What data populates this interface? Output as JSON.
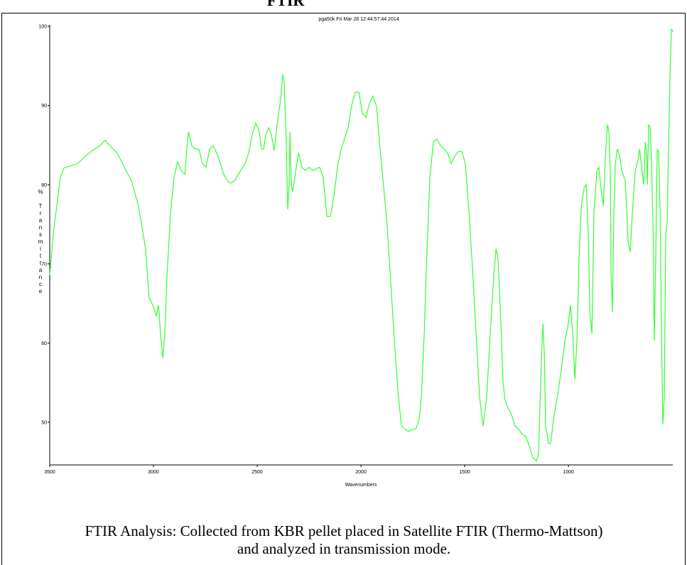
{
  "top_title": "FTIR",
  "caption_lines": [
    "FTIR Analysis: Collected from KBR pellet placed in Satellite FTIR (Thermo-Mattson)",
    "and analyzed in transmission mode."
  ],
  "chart_data": {
    "type": "line",
    "title": "pga50k  Fri Mar 28 12:44:57:44 2014",
    "x_label": "Wavenumbers",
    "y_label": "% Transmittance",
    "color": "#33ff33",
    "xlim": [
      3500,
      497
    ],
    "xticks": [
      3500,
      3000,
      2500,
      2000,
      1500,
      1000
    ],
    "ylim": [
      44.6,
      100.2
    ],
    "yticks": [
      50,
      60,
      70,
      80,
      90,
      100
    ],
    "x": [
      3500,
      3483,
      3466,
      3449,
      3432,
      3397,
      3363,
      3329,
      3295,
      3260,
      3233,
      3209,
      3175,
      3140,
      3106,
      3072,
      3038,
      3021,
      3003,
      2986,
      2976,
      2966,
      2955,
      2945,
      2935,
      2918,
      2901,
      2884,
      2866,
      2849,
      2832,
      2815,
      2798,
      2781,
      2764,
      2747,
      2729,
      2712,
      2695,
      2678,
      2661,
      2644,
      2627,
      2610,
      2592,
      2575,
      2558,
      2541,
      2524,
      2507,
      2490,
      2479,
      2469,
      2459,
      2445,
      2432,
      2418,
      2404,
      2387,
      2377,
      2370,
      2360,
      2353,
      2346,
      2342,
      2336,
      2329,
      2319,
      2301,
      2284,
      2267,
      2250,
      2233,
      2216,
      2199,
      2182,
      2164,
      2147,
      2130,
      2113,
      2096,
      2079,
      2062,
      2045,
      2027,
      2010,
      1993,
      1976,
      1959,
      1942,
      1925,
      1908,
      1890,
      1873,
      1856,
      1839,
      1822,
      1805,
      1788,
      1771,
      1753,
      1736,
      1719,
      1709,
      1695,
      1685,
      1668,
      1651,
      1634,
      1616,
      1599,
      1582,
      1565,
      1548,
      1531,
      1514,
      1497,
      1479,
      1462,
      1445,
      1428,
      1411,
      1394,
      1377,
      1360,
      1349,
      1339,
      1325,
      1315,
      1305,
      1291,
      1274,
      1257,
      1240,
      1223,
      1206,
      1188,
      1171,
      1154,
      1144,
      1130,
      1123,
      1116,
      1110,
      1096,
      1086,
      1069,
      1051,
      1034,
      1017,
      1000,
      990,
      979,
      969,
      959,
      949,
      938,
      924,
      914,
      904,
      897,
      887,
      877,
      863,
      853,
      843,
      832,
      822,
      812,
      805,
      798,
      795,
      788,
      781,
      774,
      764,
      753,
      743,
      726,
      712,
      702,
      692,
      678,
      664,
      657,
      647,
      637,
      630,
      623,
      620,
      613,
      606,
      599,
      592,
      586,
      579,
      572,
      565,
      558,
      551,
      545,
      538,
      531,
      524,
      517,
      510,
      503,
      497
    ],
    "values": [
      68.6,
      73.7,
      77.3,
      80.9,
      82.1,
      82.4,
      82.7,
      83.6,
      84.3,
      84.9,
      85.6,
      84.9,
      84.0,
      82.2,
      80.5,
      77.3,
      71.9,
      65.7,
      64.8,
      63.4,
      64.8,
      61.2,
      58.1,
      61.2,
      68.4,
      76.4,
      80.9,
      82.9,
      81.8,
      81.3,
      86.7,
      84.9,
      84.5,
      84.5,
      82.7,
      82.2,
      84.5,
      84.9,
      84.0,
      82.7,
      81.3,
      80.5,
      80.2,
      80.5,
      81.3,
      82.0,
      82.7,
      84.0,
      86.3,
      87.8,
      86.7,
      84.5,
      84.5,
      86.3,
      87.2,
      86.3,
      84.3,
      87.6,
      90.8,
      93.9,
      93.0,
      85.4,
      76.9,
      80.0,
      86.7,
      80.0,
      79.1,
      80.9,
      84.0,
      82.2,
      81.8,
      82.2,
      81.8,
      82.0,
      82.2,
      80.9,
      76.0,
      76.0,
      78.7,
      82.2,
      84.5,
      85.8,
      87.2,
      90.0,
      91.7,
      91.7,
      89.0,
      88.5,
      90.3,
      91.2,
      89.9,
      84.5,
      79.6,
      74.6,
      67.5,
      60.3,
      54.0,
      49.5,
      49.1,
      48.8,
      49.1,
      49.1,
      50.4,
      53.1,
      61.2,
      69.3,
      80.9,
      85.4,
      85.8,
      84.9,
      84.5,
      84.0,
      82.7,
      83.6,
      84.2,
      84.2,
      82.7,
      76.4,
      69.3,
      61.2,
      53.1,
      49.5,
      53.1,
      61.2,
      68.4,
      71.9,
      70.6,
      62.1,
      54.9,
      52.7,
      51.8,
      50.9,
      49.5,
      49.1,
      48.5,
      48.2,
      46.9,
      45.5,
      45.1,
      46.0,
      58.1,
      62.5,
      58.5,
      49.5,
      47.3,
      47.3,
      50.9,
      53.6,
      56.7,
      60.3,
      62.5,
      64.8,
      61.2,
      55.4,
      60.3,
      70.6,
      77.3,
      79.6,
      80.0,
      73.7,
      63.9,
      61.2,
      76.4,
      81.8,
      82.2,
      79.6,
      77.3,
      83.6,
      87.6,
      86.7,
      81.3,
      69.3,
      63.9,
      76.4,
      82.7,
      84.5,
      83.6,
      81.8,
      80.5,
      72.8,
      71.5,
      76.4,
      81.8,
      83.1,
      84.5,
      82.2,
      80.0,
      85.4,
      84.0,
      80.0,
      87.6,
      87.2,
      82.7,
      74.2,
      60.3,
      71.3,
      84.5,
      84.0,
      76.4,
      60.3,
      49.7,
      53.1,
      73.7,
      75.5,
      85.4,
      94.3,
      99.7,
      99.3
    ]
  }
}
